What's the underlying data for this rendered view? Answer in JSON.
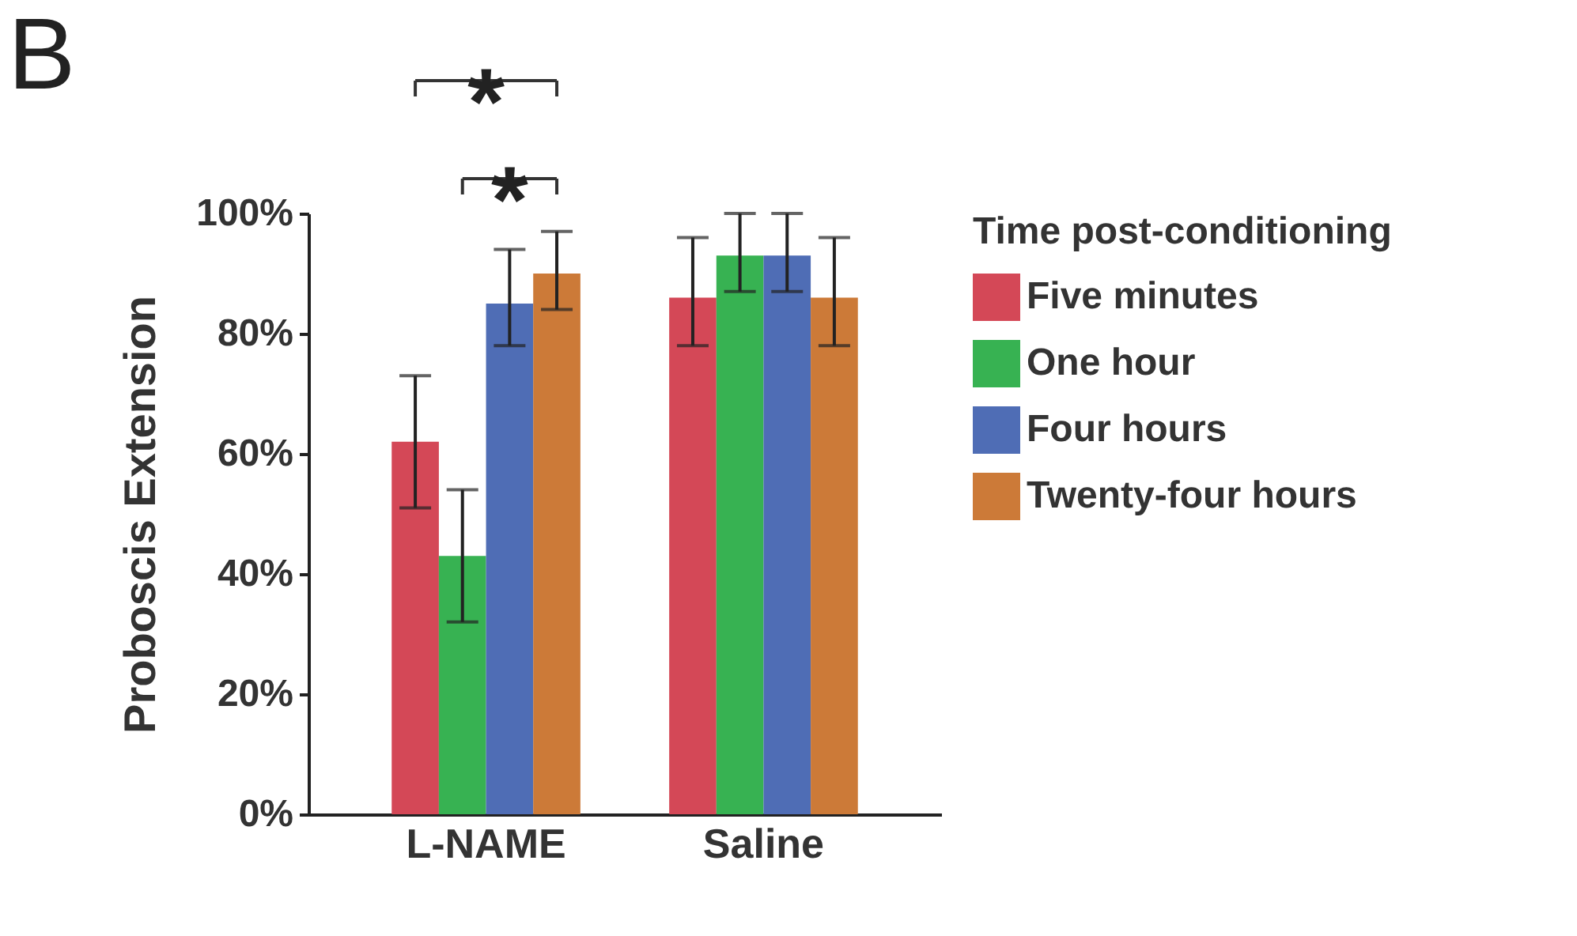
{
  "chart_data": {
    "type": "bar",
    "ylabel": "Proboscis Extension",
    "legend_title": "Time post-conditioning",
    "categories": [
      "L-NAME",
      "Saline"
    ],
    "series": [
      {
        "name": "Five minutes",
        "color": "#d44857",
        "values": [
          62,
          86
        ],
        "errors": [
          [
            51,
            73
          ],
          [
            78,
            96
          ]
        ]
      },
      {
        "name": "One hour",
        "color": "#37b252",
        "values": [
          43,
          93
        ],
        "errors": [
          [
            32,
            54
          ],
          [
            87,
            100
          ]
        ]
      },
      {
        "name": "Four hours",
        "color": "#4f6db5",
        "values": [
          85,
          93
        ],
        "errors": [
          [
            78,
            94
          ],
          [
            87,
            100
          ]
        ]
      },
      {
        "name": "Twenty-four hours",
        "color": "#cc7a38",
        "values": [
          90,
          86
        ],
        "errors": [
          [
            84,
            97
          ],
          [
            78,
            96
          ]
        ]
      }
    ],
    "ylim": [
      0,
      100
    ],
    "yticks": [
      {
        "value": 0,
        "label": "0%"
      },
      {
        "value": 20,
        "label": "20%"
      },
      {
        "value": 40,
        "label": "40%"
      },
      {
        "value": 60,
        "label": "60%"
      },
      {
        "value": 80,
        "label": "80%"
      },
      {
        "value": 100,
        "label": "100%"
      }
    ],
    "legend": "right",
    "grid": false,
    "annotations": [
      "B",
      "*",
      "*"
    ]
  }
}
